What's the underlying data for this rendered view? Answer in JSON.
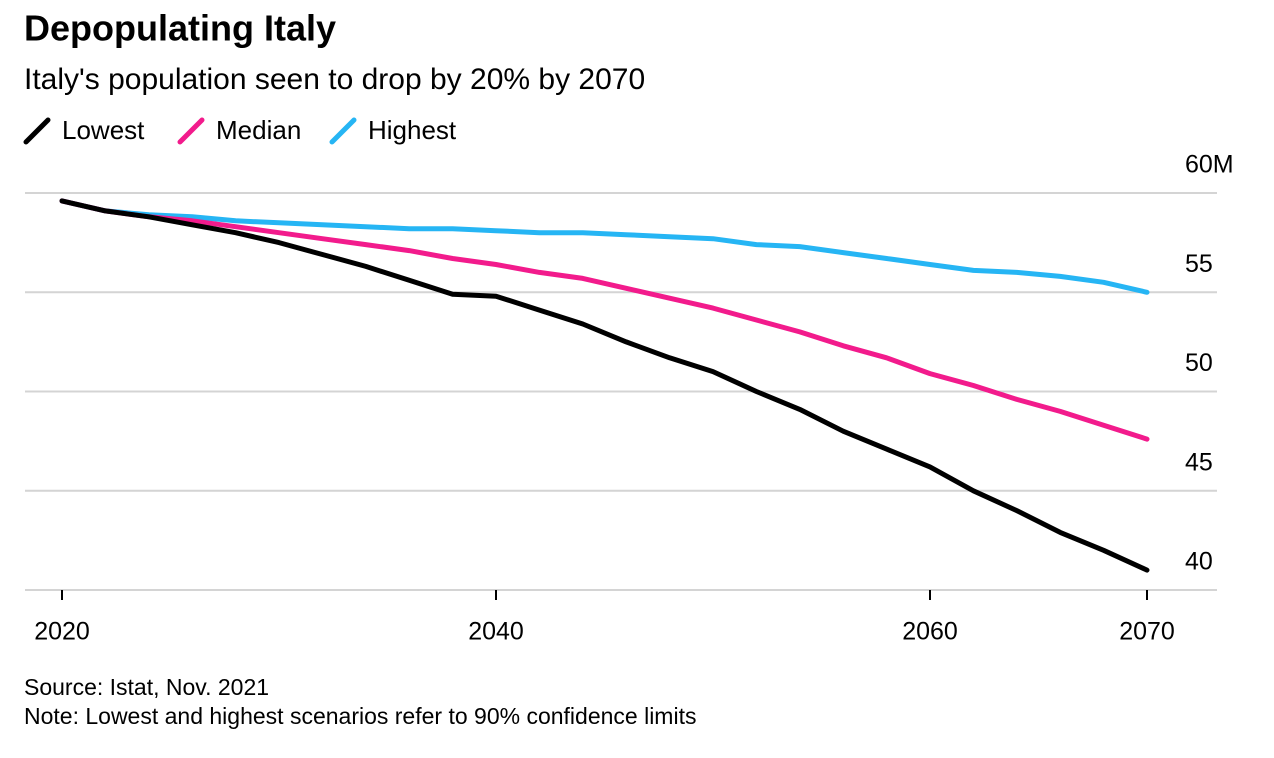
{
  "chart_data": {
    "type": "line",
    "title": "Depopulating Italy",
    "subtitle": "Italy's population seen to drop by 20% by 2070",
    "source": "Source: Istat, Nov. 2021",
    "note": "Note: Lowest and highest scenarios refer to 90% confidence limits",
    "x": [
      2020,
      2022,
      2024,
      2026,
      2028,
      2030,
      2032,
      2034,
      2036,
      2038,
      2040,
      2042,
      2044,
      2046,
      2048,
      2050,
      2052,
      2054,
      2056,
      2058,
      2060,
      2062,
      2064,
      2066,
      2068,
      2070
    ],
    "series": [
      {
        "name": "Lowest",
        "color": "#000000",
        "values": [
          59.6,
          59.1,
          58.8,
          58.4,
          58.0,
          57.5,
          56.9,
          56.3,
          55.6,
          54.9,
          54.8,
          54.1,
          53.4,
          52.5,
          51.7,
          51.0,
          50.0,
          49.1,
          48.0,
          47.1,
          46.2,
          45.0,
          44.0,
          42.9,
          42.0,
          41.0
        ]
      },
      {
        "name": "Median",
        "color": "#f21b8c",
        "values": [
          59.6,
          59.1,
          58.8,
          58.6,
          58.3,
          58.0,
          57.7,
          57.4,
          57.1,
          56.7,
          56.4,
          56.0,
          55.7,
          55.2,
          54.7,
          54.2,
          53.6,
          53.0,
          52.3,
          51.7,
          50.9,
          50.3,
          49.6,
          49.0,
          48.3,
          47.6
        ]
      },
      {
        "name": "Highest",
        "color": "#26b5f4",
        "values": [
          59.6,
          59.1,
          58.9,
          58.8,
          58.6,
          58.5,
          58.4,
          58.3,
          58.2,
          58.2,
          58.1,
          58.0,
          58.0,
          57.9,
          57.8,
          57.7,
          57.4,
          57.3,
          57.0,
          56.7,
          56.4,
          56.1,
          56.0,
          55.8,
          55.5,
          55.0
        ]
      }
    ],
    "xlim": [
      2020,
      2070
    ],
    "xticks": [
      2020,
      2040,
      2060,
      2070
    ],
    "ylim": [
      40,
      60
    ],
    "yticks": [
      40,
      45,
      50,
      55,
      {
        "value": 60,
        "label": "60M"
      }
    ],
    "grid": true
  }
}
